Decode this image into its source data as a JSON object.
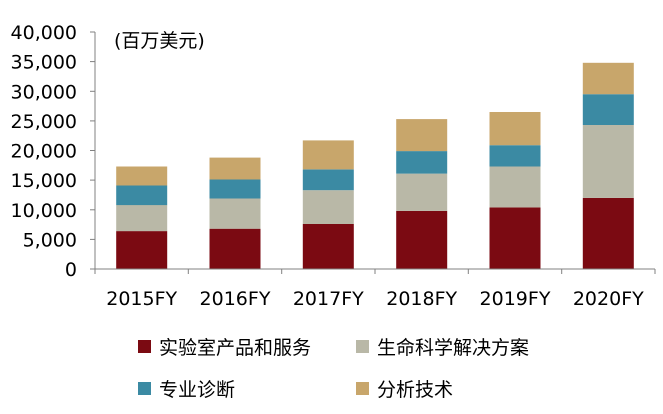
{
  "chart_data": {
    "type": "bar",
    "stacked": true,
    "unit_label": "(百万美元)",
    "categories": [
      "2015FY",
      "2016FY",
      "2017FY",
      "2018FY",
      "2019FY",
      "2020FY"
    ],
    "series": [
      {
        "name": "实验室产品和服务",
        "color": "#7b0a12",
        "values": [
          6400,
          6800,
          7600,
          9800,
          10400,
          12000
        ]
      },
      {
        "name": "生命科学解决方案",
        "color": "#b9b8a7",
        "values": [
          4400,
          5100,
          5700,
          6300,
          6900,
          12300
        ]
      },
      {
        "name": "专业诊断",
        "color": "#3b8aa3",
        "values": [
          3300,
          3200,
          3500,
          3800,
          3600,
          5200
        ]
      },
      {
        "name": "分析技术",
        "color": "#c8a66b",
        "values": [
          3200,
          3700,
          4900,
          5400,
          5600,
          5300
        ]
      }
    ],
    "yticks": [
      "0",
      "5,000",
      "10,000",
      "15,000",
      "20,000",
      "25,000",
      "30,000",
      "35,000",
      "40,000"
    ],
    "ylim": [
      0,
      40000
    ],
    "grid": false,
    "legend_position": "bottom"
  }
}
